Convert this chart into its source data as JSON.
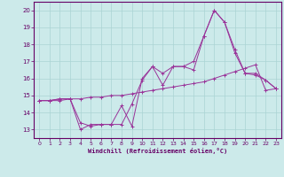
{
  "xlabel": "Windchill (Refroidissement éolien,°C)",
  "background_color": "#cceaea",
  "grid_color": "#aad4d4",
  "line_color": "#993399",
  "xlim": [
    -0.5,
    23.5
  ],
  "ylim": [
    12.5,
    20.5
  ],
  "xticks": [
    0,
    1,
    2,
    3,
    4,
    5,
    6,
    7,
    8,
    9,
    10,
    11,
    12,
    13,
    14,
    15,
    16,
    17,
    18,
    19,
    20,
    21,
    22,
    23
  ],
  "yticks": [
    13,
    14,
    15,
    16,
    17,
    18,
    19,
    20
  ],
  "series1_x": [
    0,
    1,
    2,
    3,
    4,
    5,
    6,
    7,
    8,
    9,
    10,
    11,
    12,
    13,
    14,
    15,
    16,
    17,
    18,
    19,
    20,
    21,
    22,
    23
  ],
  "series1_y": [
    14.7,
    14.7,
    14.7,
    14.8,
    14.8,
    14.9,
    14.9,
    15.0,
    15.0,
    15.1,
    15.2,
    15.3,
    15.4,
    15.5,
    15.6,
    15.7,
    15.8,
    16.0,
    16.2,
    16.4,
    16.6,
    16.8,
    15.3,
    15.4
  ],
  "series2_x": [
    0,
    1,
    2,
    3,
    4,
    5,
    6,
    7,
    8,
    9,
    10,
    11,
    12,
    13,
    14,
    15,
    16,
    17,
    18,
    19,
    20,
    21,
    22,
    23
  ],
  "series2_y": [
    14.7,
    14.7,
    14.8,
    14.8,
    13.4,
    13.2,
    13.3,
    13.3,
    14.4,
    13.2,
    16.0,
    16.7,
    15.6,
    16.7,
    16.7,
    16.5,
    18.5,
    20.0,
    19.3,
    17.5,
    16.3,
    16.2,
    15.9,
    15.4
  ],
  "series3_x": [
    0,
    1,
    2,
    3,
    4,
    5,
    6,
    7,
    8,
    9,
    10,
    11,
    12,
    13,
    14,
    15,
    16,
    17,
    18,
    19,
    20,
    21,
    22,
    23
  ],
  "series3_y": [
    14.7,
    14.7,
    14.8,
    14.8,
    13.0,
    13.3,
    13.3,
    13.3,
    13.3,
    14.5,
    15.9,
    16.7,
    16.3,
    16.7,
    16.7,
    17.0,
    18.5,
    20.0,
    19.3,
    17.7,
    16.3,
    16.3,
    15.9,
    15.4
  ]
}
